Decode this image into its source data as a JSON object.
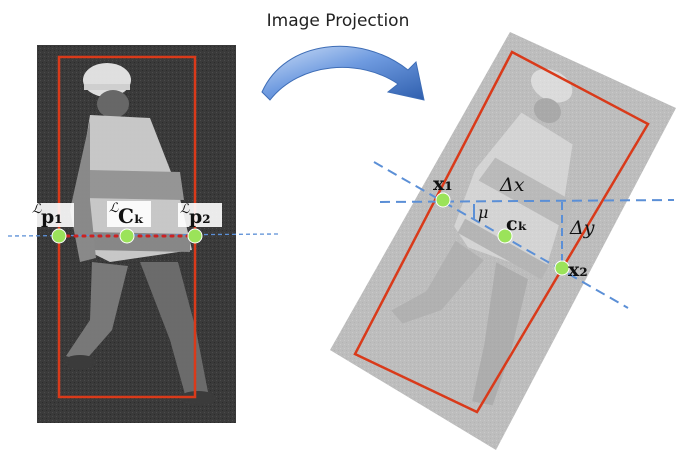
{
  "title": "Image Projection",
  "left_labels": {
    "p1_pre": "ℒ",
    "p1": "p₁",
    "ck_pre": "ℒ",
    "ck": "Cₖ",
    "p2_pre": "ℒ",
    "p2": "p₂"
  },
  "right_labels": {
    "x1": "x₁",
    "dx": "Δx",
    "mu": "μ",
    "ck": "cₖ",
    "dy": "Δy",
    "x2": "x₂"
  },
  "colors": {
    "box": "#d93a1a",
    "dashed": "#5b8fd6",
    "point": "#9be35a",
    "dots": "#cc2222",
    "arrow": "#4f7fc6"
  }
}
